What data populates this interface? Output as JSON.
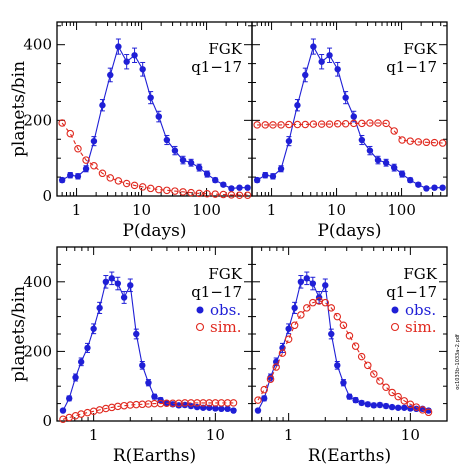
{
  "side_note": "oc1033b–1033a–2.pdf",
  "colors": {
    "obs": "#1f1fd6",
    "sim": "#e0291f"
  },
  "chart_data": [
    {
      "type": "line",
      "id": "p-left",
      "xscale": "log",
      "xlim": [
        0.5,
        500
      ],
      "ylim": [
        0,
        460
      ],
      "xticks": [
        1,
        10,
        100
      ],
      "xtick_labels": [
        "1",
        "10",
        "100"
      ],
      "yticks": [
        0,
        200,
        400
      ],
      "ytick_labels": [
        "0",
        "200",
        "400"
      ],
      "xlabel": "P(days)",
      "ylabel": "planets/bin",
      "label_lines": [
        "FGK",
        "q1−17"
      ],
      "legend": [],
      "series": [
        {
          "kind": "obs",
          "x": [
            0.6,
            0.8,
            1.05,
            1.4,
            1.85,
            2.5,
            3.3,
            4.4,
            5.9,
            7.8,
            10.4,
            13.8,
            18.4,
            24.5,
            32.6,
            43.4,
            57.8,
            77,
            102,
            136,
            181,
            241,
            321,
            428
          ],
          "y": [
            42,
            55,
            52,
            72,
            145,
            240,
            320,
            395,
            355,
            372,
            335,
            260,
            210,
            148,
            120,
            95,
            88,
            75,
            58,
            42,
            30,
            20,
            22,
            22
          ],
          "err": [
            6,
            7,
            7,
            8,
            12,
            15,
            18,
            20,
            19,
            19,
            18,
            16,
            14,
            12,
            11,
            10,
            9,
            9,
            8,
            6,
            5,
            4,
            4,
            4
          ]
        },
        {
          "kind": "sim",
          "x": [
            0.6,
            0.8,
            1.05,
            1.4,
            1.85,
            2.5,
            3.3,
            4.4,
            5.9,
            7.8,
            10.4,
            13.8,
            18.4,
            24.5,
            32.6,
            43.4,
            57.8,
            77,
            102,
            136,
            181,
            241,
            321,
            428
          ],
          "y": [
            193,
            165,
            125,
            95,
            80,
            60,
            48,
            40,
            33,
            28,
            24,
            20,
            17,
            15,
            13,
            11,
            9,
            7,
            6,
            5,
            4,
            3,
            2,
            2
          ]
        }
      ]
    },
    {
      "type": "line",
      "id": "p-right",
      "xscale": "log",
      "xlim": [
        0.5,
        500
      ],
      "ylim": [
        0,
        460
      ],
      "xticks": [
        1,
        10,
        100
      ],
      "xtick_labels": [
        "1",
        "10",
        "100"
      ],
      "yticks": [
        0,
        200,
        400
      ],
      "ytick_labels": [],
      "xlabel": "P(days)",
      "ylabel": "",
      "label_lines": [
        "FGK",
        "q1−17"
      ],
      "legend": [],
      "series": [
        {
          "kind": "obs",
          "x": [
            0.6,
            0.8,
            1.05,
            1.4,
            1.85,
            2.5,
            3.3,
            4.4,
            5.9,
            7.8,
            10.4,
            13.8,
            18.4,
            24.5,
            32.6,
            43.4,
            57.8,
            77,
            102,
            136,
            181,
            241,
            321,
            428
          ],
          "y": [
            42,
            55,
            52,
            72,
            145,
            240,
            320,
            395,
            355,
            372,
            335,
            260,
            210,
            148,
            120,
            95,
            88,
            75,
            58,
            42,
            30,
            20,
            22,
            22
          ],
          "err": [
            6,
            7,
            7,
            8,
            12,
            15,
            18,
            20,
            19,
            19,
            18,
            16,
            14,
            12,
            11,
            10,
            9,
            9,
            8,
            6,
            5,
            4,
            4,
            4
          ]
        },
        {
          "kind": "sim",
          "x": [
            0.6,
            0.8,
            1.05,
            1.4,
            1.85,
            2.5,
            3.3,
            4.4,
            5.9,
            7.8,
            10.4,
            13.8,
            18.4,
            24.5,
            32.6,
            43.4,
            57.8,
            77,
            102,
            136,
            181,
            241,
            321,
            428
          ],
          "y": [
            188,
            188,
            188,
            188,
            189,
            189,
            189,
            190,
            190,
            190,
            191,
            191,
            192,
            192,
            193,
            193,
            192,
            172,
            148,
            145,
            143,
            142,
            141,
            140
          ]
        }
      ]
    },
    {
      "type": "line",
      "id": "r-left",
      "xscale": "log",
      "xlim": [
        0.5,
        20
      ],
      "ylim": [
        0,
        500
      ],
      "xticks": [
        1,
        10
      ],
      "xtick_labels": [
        "1",
        "10"
      ],
      "yticks": [
        0,
        200,
        400
      ],
      "ytick_labels": [
        "0",
        "200",
        "400"
      ],
      "xlabel": "R(Earths)",
      "ylabel": "planets/bin",
      "label_lines": [
        "FGK",
        "q1−17"
      ],
      "legend": [
        {
          "kind": "obs",
          "label": "obs."
        },
        {
          "kind": "sim",
          "label": "sim."
        }
      ],
      "series": [
        {
          "kind": "obs",
          "x": [
            0.56,
            0.63,
            0.71,
            0.79,
            0.89,
            1.0,
            1.12,
            1.26,
            1.41,
            1.58,
            1.78,
            2.0,
            2.24,
            2.51,
            2.82,
            3.16,
            3.55,
            3.98,
            4.47,
            5.01,
            5.62,
            6.31,
            7.08,
            7.94,
            8.91,
            10.0,
            11.2,
            12.6,
            14.1
          ],
          "y": [
            30,
            65,
            125,
            170,
            210,
            265,
            325,
            400,
            410,
            395,
            355,
            390,
            250,
            160,
            110,
            70,
            60,
            52,
            48,
            45,
            46,
            43,
            40,
            38,
            38,
            36,
            35,
            35,
            30
          ],
          "err": [
            5,
            7,
            10,
            11,
            13,
            14,
            16,
            18,
            18,
            18,
            17,
            18,
            14,
            11,
            9,
            7,
            7,
            6,
            6,
            6,
            6,
            6,
            5,
            5,
            5,
            5,
            5,
            5,
            5
          ]
        },
        {
          "kind": "sim",
          "x": [
            0.56,
            0.63,
            0.71,
            0.79,
            0.89,
            1.0,
            1.12,
            1.26,
            1.41,
            1.58,
            1.78,
            2.0,
            2.24,
            2.51,
            2.82,
            3.16,
            3.55,
            3.98,
            4.47,
            5.01,
            5.62,
            6.31,
            7.08,
            7.94,
            8.91,
            10.0,
            11.2,
            12.6,
            14.1
          ],
          "y": [
            5,
            10,
            15,
            20,
            24,
            28,
            32,
            36,
            39,
            42,
            44,
            46,
            47,
            48,
            49,
            50,
            50,
            51,
            51,
            51,
            52,
            52,
            52,
            52,
            52,
            52,
            52,
            52,
            52
          ]
        }
      ]
    },
    {
      "type": "line",
      "id": "r-right",
      "xscale": "log",
      "xlim": [
        0.5,
        20
      ],
      "ylim": [
        0,
        500
      ],
      "xticks": [
        1,
        10
      ],
      "xtick_labels": [
        "1",
        "10"
      ],
      "yticks": [
        0,
        200,
        400
      ],
      "ytick_labels": [],
      "xlabel": "R(Earths)",
      "ylabel": "",
      "label_lines": [
        "FGK",
        "q1−17"
      ],
      "legend": [
        {
          "kind": "obs",
          "label": "obs."
        },
        {
          "kind": "sim",
          "label": "sim."
        }
      ],
      "series": [
        {
          "kind": "obs",
          "x": [
            0.56,
            0.63,
            0.71,
            0.79,
            0.89,
            1.0,
            1.12,
            1.26,
            1.41,
            1.58,
            1.78,
            2.0,
            2.24,
            2.51,
            2.82,
            3.16,
            3.55,
            3.98,
            4.47,
            5.01,
            5.62,
            6.31,
            7.08,
            7.94,
            8.91,
            10.0,
            11.2,
            12.6,
            14.1
          ],
          "y": [
            30,
            65,
            125,
            170,
            210,
            265,
            325,
            400,
            410,
            395,
            355,
            390,
            250,
            160,
            110,
            70,
            60,
            52,
            48,
            45,
            46,
            43,
            40,
            38,
            38,
            36,
            35,
            35,
            30
          ],
          "err": [
            5,
            7,
            10,
            11,
            13,
            14,
            16,
            18,
            18,
            18,
            17,
            18,
            14,
            11,
            9,
            7,
            7,
            6,
            6,
            6,
            6,
            6,
            5,
            5,
            5,
            5,
            5,
            5,
            5
          ]
        },
        {
          "kind": "sim",
          "x": [
            0.56,
            0.63,
            0.71,
            0.79,
            0.89,
            1.0,
            1.12,
            1.26,
            1.41,
            1.58,
            1.78,
            2.0,
            2.24,
            2.51,
            2.82,
            3.16,
            3.55,
            3.98,
            4.47,
            5.01,
            5.62,
            6.31,
            7.08,
            7.94,
            8.91,
            10.0,
            11.2,
            12.6,
            14.1
          ],
          "y": [
            60,
            90,
            120,
            155,
            195,
            235,
            275,
            305,
            325,
            340,
            345,
            340,
            325,
            300,
            275,
            245,
            215,
            185,
            160,
            135,
            115,
            97,
            82,
            70,
            58,
            48,
            40,
            32,
            25
          ]
        }
      ]
    }
  ]
}
